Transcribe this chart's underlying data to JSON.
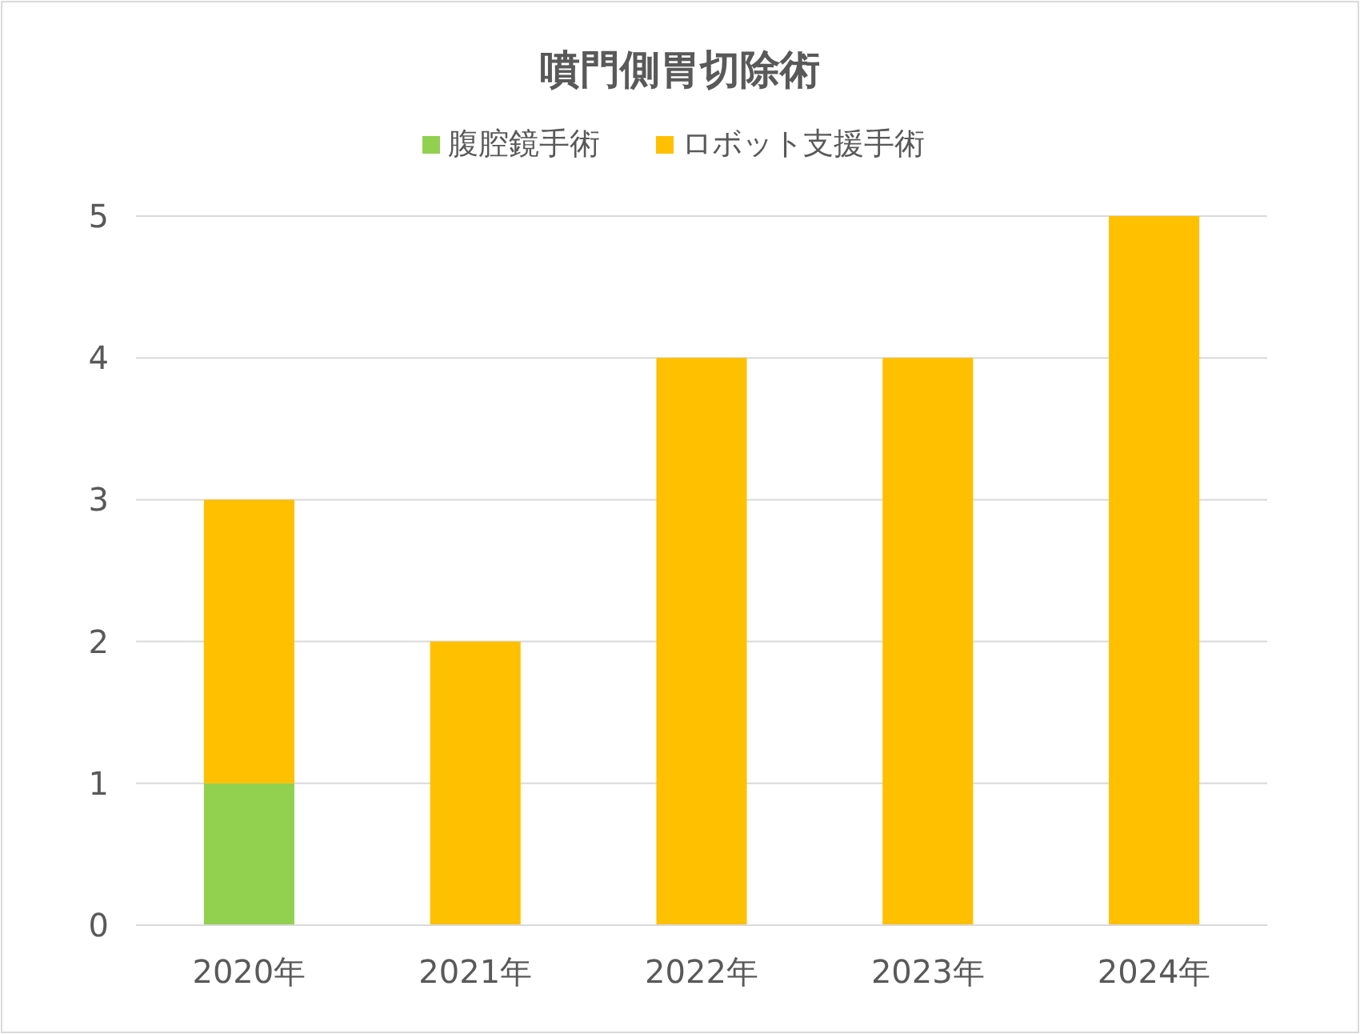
{
  "chart_data": {
    "type": "bar",
    "title": "噴門側胃切除術",
    "categories": [
      "2020年",
      "2021年",
      "2022年",
      "2023年",
      "2024年"
    ],
    "series": [
      {
        "name": "腹腔鏡手術",
        "color": "#92d050",
        "values": [
          1,
          0,
          0,
          0,
          0
        ]
      },
      {
        "name": "ロボット支援手術",
        "color": "#ffc000",
        "values": [
          2,
          2,
          4,
          4,
          5
        ]
      }
    ],
    "stacked": true,
    "ylim": [
      0,
      5
    ],
    "yticks": [
      0,
      1,
      2,
      3,
      4,
      5
    ],
    "grid": "y",
    "legend": "top"
  }
}
